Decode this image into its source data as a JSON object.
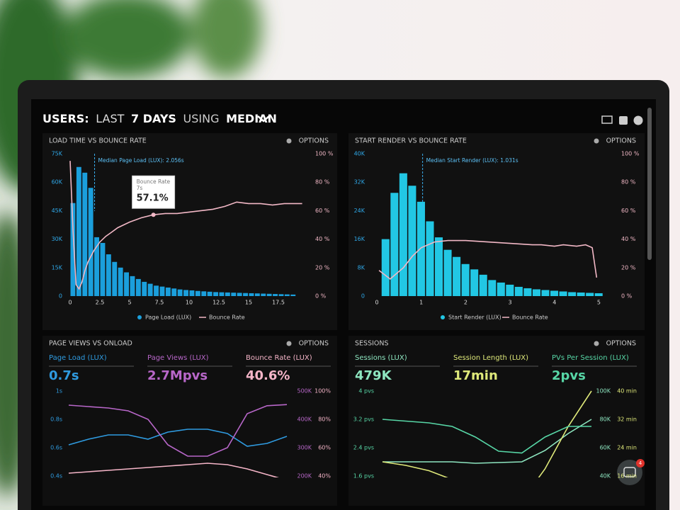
{
  "header": {
    "parts": [
      "USERS:",
      "LAST",
      "7 DAYS",
      "USING",
      "MEDIAN"
    ]
  },
  "chat_badge": "4",
  "chart_data": [
    {
      "type": "histogram",
      "title": "LOAD TIME VS BOUNCE RATE",
      "options": "OPTIONS",
      "bins": [
        0,
        0.5,
        1,
        1.5,
        2,
        2.5,
        3,
        3.5,
        4,
        4.5,
        5,
        5.5,
        6,
        6.5,
        7,
        7.5,
        8,
        8.5,
        9,
        9.5,
        10,
        10.5,
        11,
        11.5,
        12,
        12.5,
        13,
        13.5,
        14,
        14.5,
        15,
        15.5,
        16,
        16.5,
        17,
        17.5,
        18,
        18.5,
        19
      ],
      "series": [
        {
          "name": "Page Load (LUX)",
          "color": "#1b9fdc",
          "values": [
            49000,
            68000,
            65000,
            57000,
            31000,
            28000,
            22000,
            18000,
            15000,
            12500,
            10500,
            9000,
            7500,
            6500,
            5500,
            5000,
            4500,
            4000,
            3500,
            3200,
            3000,
            2700,
            2500,
            2300,
            2100,
            2000,
            1900,
            1800,
            1700,
            1600,
            1500,
            1400,
            1300,
            1200,
            1100,
            1000,
            900,
            800
          ]
        },
        {
          "name": "Bounce Rate",
          "color": "#f2b8c6",
          "axis": "y2",
          "x": [
            0,
            0.25,
            0.5,
            0.75,
            1,
            1.25,
            1.5,
            2,
            2.5,
            3,
            3.5,
            4,
            5,
            6,
            7,
            8,
            9,
            10,
            11,
            12,
            13,
            14,
            15,
            16,
            17,
            18,
            19.5
          ],
          "values": [
            95,
            45,
            8,
            5,
            10,
            18,
            24,
            32,
            38,
            42,
            45,
            48,
            52,
            55,
            57.1,
            58,
            58,
            59,
            60,
            61,
            63,
            66,
            65,
            65,
            64,
            65,
            65
          ]
        }
      ],
      "xlim": [
        0,
        20
      ],
      "xticks": [
        0,
        2.5,
        5,
        7.5,
        10,
        12.5,
        15,
        17.5
      ],
      "ylim": [
        0,
        75000
      ],
      "yticks": [
        {
          "value": 0,
          "label": "0"
        },
        {
          "value": 15000,
          "label": "15K"
        },
        {
          "value": 30000,
          "label": "30K"
        },
        {
          "value": 45000,
          "label": "45K"
        },
        {
          "value": 60000,
          "label": "60K"
        },
        {
          "value": 75000,
          "label": "75K"
        }
      ],
      "y2lim": [
        0,
        100
      ],
      "y2ticks": [
        {
          "value": 0,
          "label": "0 %"
        },
        {
          "value": 20,
          "label": "20 %"
        },
        {
          "value": 40,
          "label": "40 %"
        },
        {
          "value": 60,
          "label": "60 %"
        },
        {
          "value": 80,
          "label": "80 %"
        },
        {
          "value": 100,
          "label": "100 %"
        }
      ],
      "annotation": {
        "text": "Median Page Load (LUX): 2.056s",
        "x": 2.056
      },
      "tooltip": {
        "title": "Bounce Rate",
        "x_label": "7s",
        "value_label": "57.1%",
        "x": 7,
        "value": 57.1
      }
    },
    {
      "type": "histogram",
      "title": "START RENDER VS BOUNCE RATE",
      "options": "OPTIONS",
      "bins": [
        0.1,
        0.3,
        0.5,
        0.7,
        0.9,
        1.1,
        1.3,
        1.5,
        1.7,
        1.9,
        2.1,
        2.3,
        2.5,
        2.7,
        2.9,
        3.1,
        3.3,
        3.5,
        3.7,
        3.9,
        4.1,
        4.3,
        4.5,
        4.7,
        4.9,
        5.1
      ],
      "series": [
        {
          "name": "Start Render (LUX)",
          "color": "#22c7e4",
          "values": [
            16000,
            29000,
            34500,
            31000,
            26500,
            21000,
            16500,
            13000,
            11000,
            9000,
            7500,
            6000,
            4500,
            3800,
            3200,
            2600,
            2200,
            1900,
            1700,
            1500,
            1300,
            1100,
            1000,
            900,
            800
          ]
        },
        {
          "name": "Bounce Rate",
          "color": "#f2b8c6",
          "axis": "y2",
          "x": [
            0.05,
            0.3,
            0.6,
            0.8,
            1,
            1.3,
            1.6,
            2,
            2.5,
            3,
            3.5,
            3.7,
            4,
            4.2,
            4.5,
            4.7,
            4.85,
            4.95
          ],
          "values": [
            18,
            12,
            20,
            28,
            34,
            38,
            39,
            39,
            38,
            37,
            36,
            36,
            35,
            36,
            35,
            36,
            34,
            13
          ]
        }
      ],
      "xlim": [
        0,
        5.2
      ],
      "xticks": [
        0,
        1,
        2,
        3,
        4,
        5
      ],
      "ylim": [
        0,
        40000
      ],
      "yticks": [
        {
          "value": 0,
          "label": "0"
        },
        {
          "value": 8000,
          "label": "8K"
        },
        {
          "value": 16000,
          "label": "16K"
        },
        {
          "value": 24000,
          "label": "24K"
        },
        {
          "value": 32000,
          "label": "32K"
        },
        {
          "value": 40000,
          "label": "40K"
        }
      ],
      "y2lim": [
        0,
        100
      ],
      "y2ticks": [
        {
          "value": 0,
          "label": "0 %"
        },
        {
          "value": 20,
          "label": "20 %"
        },
        {
          "value": 40,
          "label": "40 %"
        },
        {
          "value": 60,
          "label": "60 %"
        },
        {
          "value": 80,
          "label": "80 %"
        },
        {
          "value": 100,
          "label": "100 %"
        }
      ],
      "annotation": {
        "text": "Median Start Render (LUX): 1.031s",
        "x": 1.031
      }
    },
    {
      "type": "line",
      "title": "PAGE VIEWS VS ONLOAD",
      "options": "OPTIONS",
      "metrics": [
        {
          "label": "Page Load (LUX)",
          "value": "0.7s"
        },
        {
          "label": "Page Views (LUX)",
          "value": "2.7Mpvs"
        },
        {
          "label": "Bounce Rate (LUX)",
          "value": "40.6%"
        }
      ],
      "series": [
        {
          "name": "Page Load (LUX)",
          "color": "#2f9be0",
          "values": [
            0.62,
            0.66,
            0.69,
            0.69,
            0.66,
            0.71,
            0.73,
            0.73,
            0.7,
            0.61,
            0.63,
            0.68
          ]
        },
        {
          "name": "Page Views (LUX)",
          "color": "#b867c9",
          "axis": "y2",
          "values": [
            450000,
            445000,
            440000,
            430000,
            400000,
            310000,
            270000,
            270000,
            300000,
            420000,
            448000,
            452000
          ]
        },
        {
          "name": "Bounce Rate (LUX)",
          "color": "#f5b5c8",
          "axis": "y3",
          "values": [
            42,
            43,
            44,
            45,
            46,
            47,
            48,
            49,
            48,
            45,
            41,
            37
          ]
        }
      ],
      "ylim": [
        0.4,
        1.0
      ],
      "yticks": [
        {
          "value": 0.4,
          "label": "0.4s"
        },
        {
          "value": 0.6,
          "label": "0.6s"
        },
        {
          "value": 0.8,
          "label": "0.8s"
        },
        {
          "value": 1,
          "label": "1s"
        }
      ],
      "y2lim": [
        200000,
        500000
      ],
      "y2ticks": [
        {
          "value": 200000,
          "label": "200K"
        },
        {
          "value": 300000,
          "label": "300K"
        },
        {
          "value": 400000,
          "label": "400K"
        },
        {
          "value": 500000,
          "label": "500K"
        }
      ],
      "y3lim": [
        40,
        100
      ],
      "y3ticks": [
        {
          "value": 40,
          "label": "40%"
        },
        {
          "value": 60,
          "label": "60%"
        },
        {
          "value": 80,
          "label": "80%"
        },
        {
          "value": 100,
          "label": "100%"
        }
      ]
    },
    {
      "type": "line",
      "title": "SESSIONS",
      "options": "OPTIONS",
      "metrics": [
        {
          "label": "Sessions (LUX)",
          "value": "479K"
        },
        {
          "label": "Session Length (LUX)",
          "value": "17min"
        },
        {
          "label": "PVs Per Session (LUX)",
          "value": "2pvs"
        }
      ],
      "series": [
        {
          "name": "Sessions (LUX)",
          "color": "#8ee6c0",
          "axis": "y2",
          "values": [
            50000,
            50000,
            50000,
            50000,
            49000,
            49500,
            50000,
            58000,
            70000,
            80000
          ]
        },
        {
          "name": "Session Length (LUX)",
          "color": "#dfe97a",
          "axis": "y3",
          "values": [
            20,
            19,
            17.5,
            15,
            12,
            10,
            9,
            18,
            30,
            40
          ]
        },
        {
          "name": "PVs Per Session (LUX)",
          "color": "#57d6a6",
          "values": [
            3.2,
            3.15,
            3.1,
            3.0,
            2.7,
            2.3,
            2.25,
            2.7,
            3.0,
            3.0
          ]
        }
      ],
      "ylim": [
        1.6,
        4.0
      ],
      "yticks": [
        {
          "value": 1.6,
          "label": "1.6 pvs"
        },
        {
          "value": 2.4,
          "label": "2.4 pvs"
        },
        {
          "value": 3.2,
          "label": "3.2 pvs"
        },
        {
          "value": 4,
          "label": "4 pvs"
        }
      ],
      "y2lim": [
        40000,
        100000
      ],
      "y2ticks": [
        {
          "value": 40000,
          "label": "40K"
        },
        {
          "value": 60000,
          "label": "60K"
        },
        {
          "value": 80000,
          "label": "80K"
        },
        {
          "value": 100000,
          "label": "100K"
        }
      ],
      "y3lim": [
        16,
        40
      ],
      "y3ticks": [
        {
          "value": 16,
          "label": "16 min"
        },
        {
          "value": 24,
          "label": "24 min"
        },
        {
          "value": 32,
          "label": "32 min"
        },
        {
          "value": 40,
          "label": "40 min"
        }
      ]
    }
  ]
}
